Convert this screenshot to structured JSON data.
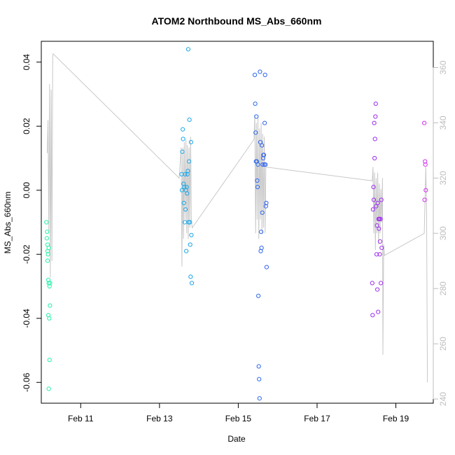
{
  "chart_data": {
    "type": "scatter",
    "title": "ATOM2 Northbound MS_Abs_660nm",
    "xlabel": "Date",
    "ylabel": "MS_Abs_660nm",
    "x_axis": {
      "unit": "day",
      "domain": [
        10.0,
        19.95
      ],
      "ticks": [
        {
          "value": 11,
          "label": "Feb 11"
        },
        {
          "value": 13,
          "label": "Feb 13"
        },
        {
          "value": 15,
          "label": "Feb 15"
        },
        {
          "value": 17,
          "label": "Feb 17"
        },
        {
          "value": 19,
          "label": "Feb 19"
        }
      ]
    },
    "y_axis_left": {
      "domain": [
        -0.0665,
        0.0465
      ],
      "ticks": [
        {
          "value": 0.04,
          "label": "0.04"
        },
        {
          "value": 0.02,
          "label": "0.02"
        },
        {
          "value": 0.0,
          "label": "0.00"
        },
        {
          "value": -0.02,
          "label": "-0.02"
        },
        {
          "value": -0.04,
          "label": "-0.04"
        },
        {
          "value": -0.06,
          "label": "-0.06"
        }
      ]
    },
    "y_axis_right": {
      "color": "#bdbdbd",
      "domain": [
        238.5,
        369.5
      ],
      "ticks": [
        {
          "value": 240,
          "label": "240"
        },
        {
          "value": 260,
          "label": "260"
        },
        {
          "value": 280,
          "label": "280"
        },
        {
          "value": 300,
          "label": "300"
        },
        {
          "value": 320,
          "label": "320"
        },
        {
          "value": 340,
          "label": "340"
        },
        {
          "value": 360,
          "label": "360"
        }
      ]
    },
    "grey_line": {
      "color": "#c8c8c8",
      "points": [
        [
          10.15,
          329
        ],
        [
          10.17,
          341
        ],
        [
          10.19,
          300
        ],
        [
          10.21,
          354
        ],
        [
          10.23,
          284
        ],
        [
          10.25,
          352
        ],
        [
          10.27,
          290
        ],
        [
          10.29,
          364
        ],
        [
          10.3,
          365
        ],
        [
          13.5,
          320
        ],
        [
          13.55,
          331
        ],
        [
          13.57,
          288
        ],
        [
          13.59,
          331
        ],
        [
          13.61,
          298
        ],
        [
          13.63,
          333
        ],
        [
          13.65,
          305
        ],
        [
          13.67,
          334
        ],
        [
          13.69,
          300
        ],
        [
          13.71,
          332
        ],
        [
          13.73,
          298
        ],
        [
          13.75,
          331
        ],
        [
          13.77,
          302
        ],
        [
          13.79,
          335
        ],
        [
          13.81,
          305
        ],
        [
          13.83,
          302
        ],
        [
          15.4,
          334
        ],
        [
          15.42,
          343
        ],
        [
          15.44,
          300
        ],
        [
          15.46,
          340
        ],
        [
          15.48,
          305
        ],
        [
          15.5,
          342
        ],
        [
          15.52,
          298
        ],
        [
          15.54,
          338
        ],
        [
          15.56,
          305
        ],
        [
          15.58,
          340
        ],
        [
          15.6,
          300
        ],
        [
          15.62,
          336
        ],
        [
          15.64,
          302
        ],
        [
          15.66,
          335
        ],
        [
          15.68,
          300
        ],
        [
          15.7,
          324
        ],
        [
          18.4,
          319
        ],
        [
          18.42,
          324
        ],
        [
          18.44,
          300
        ],
        [
          18.46,
          322
        ],
        [
          18.48,
          294
        ],
        [
          18.5,
          320
        ],
        [
          18.52,
          300
        ],
        [
          18.54,
          322
        ],
        [
          18.56,
          296
        ],
        [
          18.58,
          318
        ],
        [
          18.6,
          300
        ],
        [
          18.62,
          316
        ],
        [
          18.64,
          304
        ],
        [
          18.66,
          320
        ],
        [
          18.67,
          256
        ],
        [
          18.69,
          296
        ],
        [
          18.71,
          292
        ],
        [
          19.72,
          300
        ],
        [
          19.76,
          324
        ],
        [
          19.78,
          308
        ],
        [
          19.8,
          246
        ]
      ]
    },
    "series_color_ramp": [
      "#26f2a6",
      "#1fd0e6",
      "#1b7bec",
      "#6a2ef0",
      "#d42ef0"
    ],
    "points": [
      {
        "x": 10.13,
        "y": -0.01
      },
      {
        "x": 10.14,
        "y": -0.015
      },
      {
        "x": 10.15,
        "y": -0.013
      },
      {
        "x": 10.16,
        "y": -0.017
      },
      {
        "x": 10.16,
        "y": -0.019
      },
      {
        "x": 10.17,
        "y": -0.02
      },
      {
        "x": 10.16,
        "y": -0.022
      },
      {
        "x": 10.18,
        "y": -0.028
      },
      {
        "x": 10.19,
        "y": -0.018
      },
      {
        "x": 10.19,
        "y": -0.029
      },
      {
        "x": 10.21,
        "y": -0.03
      },
      {
        "x": 10.22,
        "y": -0.029
      },
      {
        "x": 10.18,
        "y": -0.039
      },
      {
        "x": 10.2,
        "y": -0.04
      },
      {
        "x": 10.22,
        "y": -0.036
      },
      {
        "x": 10.21,
        "y": -0.053
      },
      {
        "x": 10.19,
        "y": -0.062
      },
      {
        "x": 13.56,
        "y": 0.005
      },
      {
        "x": 13.57,
        "y": 0.0
      },
      {
        "x": 13.58,
        "y": 0.012
      },
      {
        "x": 13.59,
        "y": 0.019
      },
      {
        "x": 13.6,
        "y": 0.016
      },
      {
        "x": 13.61,
        "y": 0.002
      },
      {
        "x": 13.62,
        "y": -0.004
      },
      {
        "x": 13.63,
        "y": 0.001
      },
      {
        "x": 13.64,
        "y": -0.01
      },
      {
        "x": 13.65,
        "y": 0.005
      },
      {
        "x": 13.66,
        "y": -0.006
      },
      {
        "x": 13.67,
        "y": 0.0
      },
      {
        "x": 13.68,
        "y": -0.019
      },
      {
        "x": 13.69,
        "y": 0.001
      },
      {
        "x": 13.7,
        "y": -0.001
      },
      {
        "x": 13.71,
        "y": 0.005
      },
      {
        "x": 13.72,
        "y": 0.006
      },
      {
        "x": 13.73,
        "y": 0.044
      },
      {
        "x": 13.74,
        "y": -0.01
      },
      {
        "x": 13.75,
        "y": 0.009
      },
      {
        "x": 13.76,
        "y": 0.022
      },
      {
        "x": 13.77,
        "y": -0.01
      },
      {
        "x": 13.78,
        "y": -0.017
      },
      {
        "x": 13.79,
        "y": -0.027
      },
      {
        "x": 13.8,
        "y": 0.015
      },
      {
        "x": 13.81,
        "y": -0.014
      },
      {
        "x": 13.82,
        "y": -0.029
      },
      {
        "x": 15.42,
        "y": 0.036
      },
      {
        "x": 15.43,
        "y": 0.027
      },
      {
        "x": 15.44,
        "y": 0.018
      },
      {
        "x": 15.45,
        "y": 0.009
      },
      {
        "x": 15.46,
        "y": 0.023
      },
      {
        "x": 15.47,
        "y": 0.009
      },
      {
        "x": 15.48,
        "y": 0.003
      },
      {
        "x": 15.49,
        "y": 0.001
      },
      {
        "x": 15.5,
        "y": 0.008
      },
      {
        "x": 15.51,
        "y": -0.033
      },
      {
        "x": 15.52,
        "y": -0.055
      },
      {
        "x": 15.53,
        "y": -0.059
      },
      {
        "x": 15.54,
        "y": -0.065
      },
      {
        "x": 15.55,
        "y": 0.037
      },
      {
        "x": 15.56,
        "y": 0.015
      },
      {
        "x": 15.57,
        "y": -0.019
      },
      {
        "x": 15.58,
        "y": -0.013
      },
      {
        "x": 15.59,
        "y": -0.018
      },
      {
        "x": 15.6,
        "y": 0.014
      },
      {
        "x": 15.61,
        "y": -0.007
      },
      {
        "x": 15.62,
        "y": 0.008
      },
      {
        "x": 15.63,
        "y": 0.01
      },
      {
        "x": 15.64,
        "y": 0.011
      },
      {
        "x": 15.65,
        "y": 0.011
      },
      {
        "x": 15.66,
        "y": 0.008
      },
      {
        "x": 15.67,
        "y": 0.021
      },
      {
        "x": 15.68,
        "y": 0.036
      },
      {
        "x": 15.69,
        "y": 0.008
      },
      {
        "x": 15.7,
        "y": -0.005
      },
      {
        "x": 15.71,
        "y": -0.004
      },
      {
        "x": 15.72,
        "y": -0.024
      },
      {
        "x": 18.4,
        "y": -0.029
      },
      {
        "x": 18.41,
        "y": -0.039
      },
      {
        "x": 18.42,
        "y": -0.006
      },
      {
        "x": 18.43,
        "y": 0.001
      },
      {
        "x": 18.44,
        "y": -0.003
      },
      {
        "x": 18.45,
        "y": 0.021
      },
      {
        "x": 18.46,
        "y": 0.01
      },
      {
        "x": 18.47,
        "y": 0.016
      },
      {
        "x": 18.48,
        "y": 0.023
      },
      {
        "x": 18.49,
        "y": 0.027
      },
      {
        "x": 18.5,
        "y": -0.005
      },
      {
        "x": 18.51,
        "y": -0.02
      },
      {
        "x": 18.52,
        "y": -0.011
      },
      {
        "x": 18.53,
        "y": -0.031
      },
      {
        "x": 18.54,
        "y": -0.004
      },
      {
        "x": 18.55,
        "y": -0.038
      },
      {
        "x": 18.56,
        "y": -0.009
      },
      {
        "x": 18.57,
        "y": -0.012
      },
      {
        "x": 18.58,
        "y": -0.009
      },
      {
        "x": 18.59,
        "y": -0.02
      },
      {
        "x": 18.6,
        "y": -0.016
      },
      {
        "x": 18.61,
        "y": -0.009
      },
      {
        "x": 18.62,
        "y": -0.029
      },
      {
        "x": 18.63,
        "y": -0.003
      },
      {
        "x": 18.64,
        "y": -0.018
      },
      {
        "x": 19.72,
        "y": 0.021
      },
      {
        "x": 19.73,
        "y": -0.003
      },
      {
        "x": 19.74,
        "y": 0.009
      },
      {
        "x": 19.75,
        "y": 0.008
      },
      {
        "x": 19.76,
        "y": 0.0
      }
    ]
  }
}
